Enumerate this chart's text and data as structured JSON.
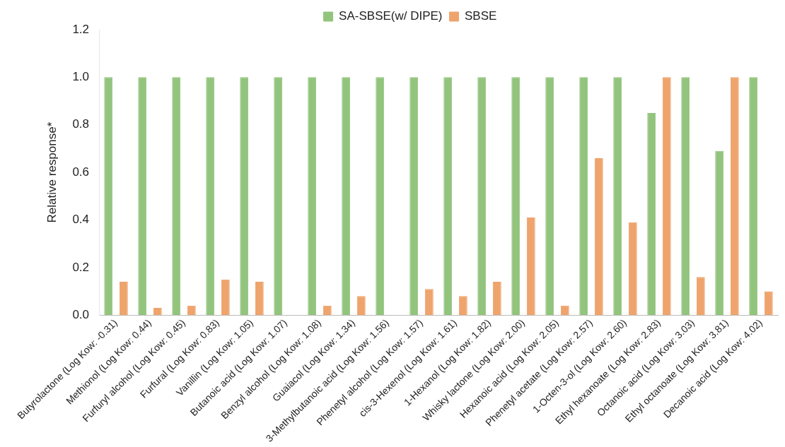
{
  "chart_data": {
    "type": "bar",
    "ylabel": "Relative response*",
    "legend": "top",
    "categories": [
      "Butyrolactone (Log Kow: -0.31)",
      "Methionol (Log Kow: 0.44)",
      "Furfuryl alcohol (Log Kow: 0.45)",
      "Furfural (Log Kow: 0.83)",
      "Vanillin (Log Kow: 1.05)",
      "Butanoic acid (Log Kow: 1.07)",
      "Benzyl alcohol (Log Kow: 1.08)",
      "Guaiacol (Log Kow: 1.34)",
      "3-Methylbutanoic acid (Log Kow: 1.56)",
      "Phenetyl alcohol (Log Kow: 1.57)",
      "cis-3-Hexenol (Log Kow: 1.61)",
      "1-Hexanol (Log Kow: 1.82)",
      "Whisky lactone (Log Kow: 2.00)",
      "Hexanoic acid (Log Kow: 2.05)",
      "Phenetyl acetate (Log Kow: 2.57)",
      "1-Octen-3-ol (Log Kow: 2.60)",
      "Ethyl hexanoate (Log Kow: 2.83)",
      "Octanoic acid (Log Kow: 3.03)",
      "Ethyl octanoate (Log Kow: 3.81)",
      "Decanoic acid (Log Kow: 4.02)"
    ],
    "series": [
      {
        "name": "SA-SBSE(w/ DIPE)",
        "color": "#92c47d",
        "values": [
          1,
          1,
          1,
          1,
          1,
          1,
          1,
          1,
          1,
          1,
          1,
          1,
          1,
          1,
          1,
          1,
          0.85,
          1,
          0.69,
          1
        ]
      },
      {
        "name": "SBSE",
        "color": "#eea46c",
        "values": [
          0.14,
          0.03,
          0.04,
          0.15,
          0.14,
          0,
          0.04,
          0.08,
          0,
          0.11,
          0.08,
          0.14,
          0.41,
          0.04,
          0.66,
          0.39,
          1,
          0.16,
          1,
          0.1
        ]
      }
    ],
    "ylim": [
      0,
      1.2
    ],
    "yticks": [
      {
        "value": 0,
        "label": "0.0"
      },
      {
        "value": 0.2,
        "label": "0.2"
      },
      {
        "value": 0.4,
        "label": "0.4"
      },
      {
        "value": 0.6,
        "label": "0.6"
      },
      {
        "value": 0.8,
        "label": "0.8"
      },
      {
        "value": 1,
        "label": "1.0"
      },
      {
        "value": 1.2,
        "label": "1.2"
      }
    ],
    "grid": false
  }
}
